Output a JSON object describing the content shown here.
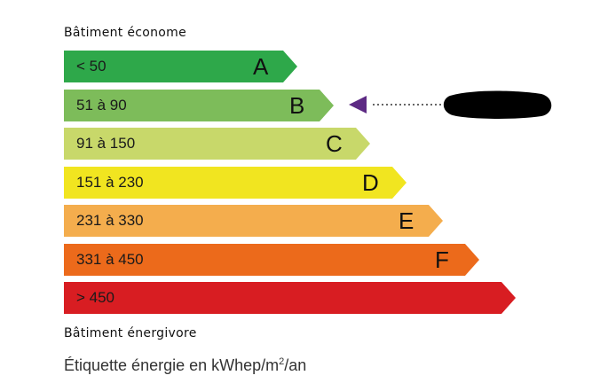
{
  "top_label": "Bâtiment économe",
  "bottom_label": "Bâtiment énergivore",
  "unit_prefix": "Étiquette énergie en kWhep/m",
  "unit_sup": "2",
  "unit_suffix": "/an",
  "classes": [
    {
      "letter": "A",
      "range": "< 50",
      "color": "#2ea84a"
    },
    {
      "letter": "B",
      "range": "51 à 90",
      "color": "#7dbc5a"
    },
    {
      "letter": "C",
      "range": "91 à 150",
      "color": "#c8d86a"
    },
    {
      "letter": "D",
      "range": "151 à 230",
      "color": "#f1e520"
    },
    {
      "letter": "E",
      "range": "231 à 330",
      "color": "#f4ad4d"
    },
    {
      "letter": "F",
      "range": "331 à 450",
      "color": "#ec6a1b"
    },
    {
      "letter": "",
      "range": "> 450",
      "color": "#d81d22"
    }
  ],
  "indicator": {
    "class": "B",
    "color": "#5d2a84",
    "value_redacted": true
  }
}
